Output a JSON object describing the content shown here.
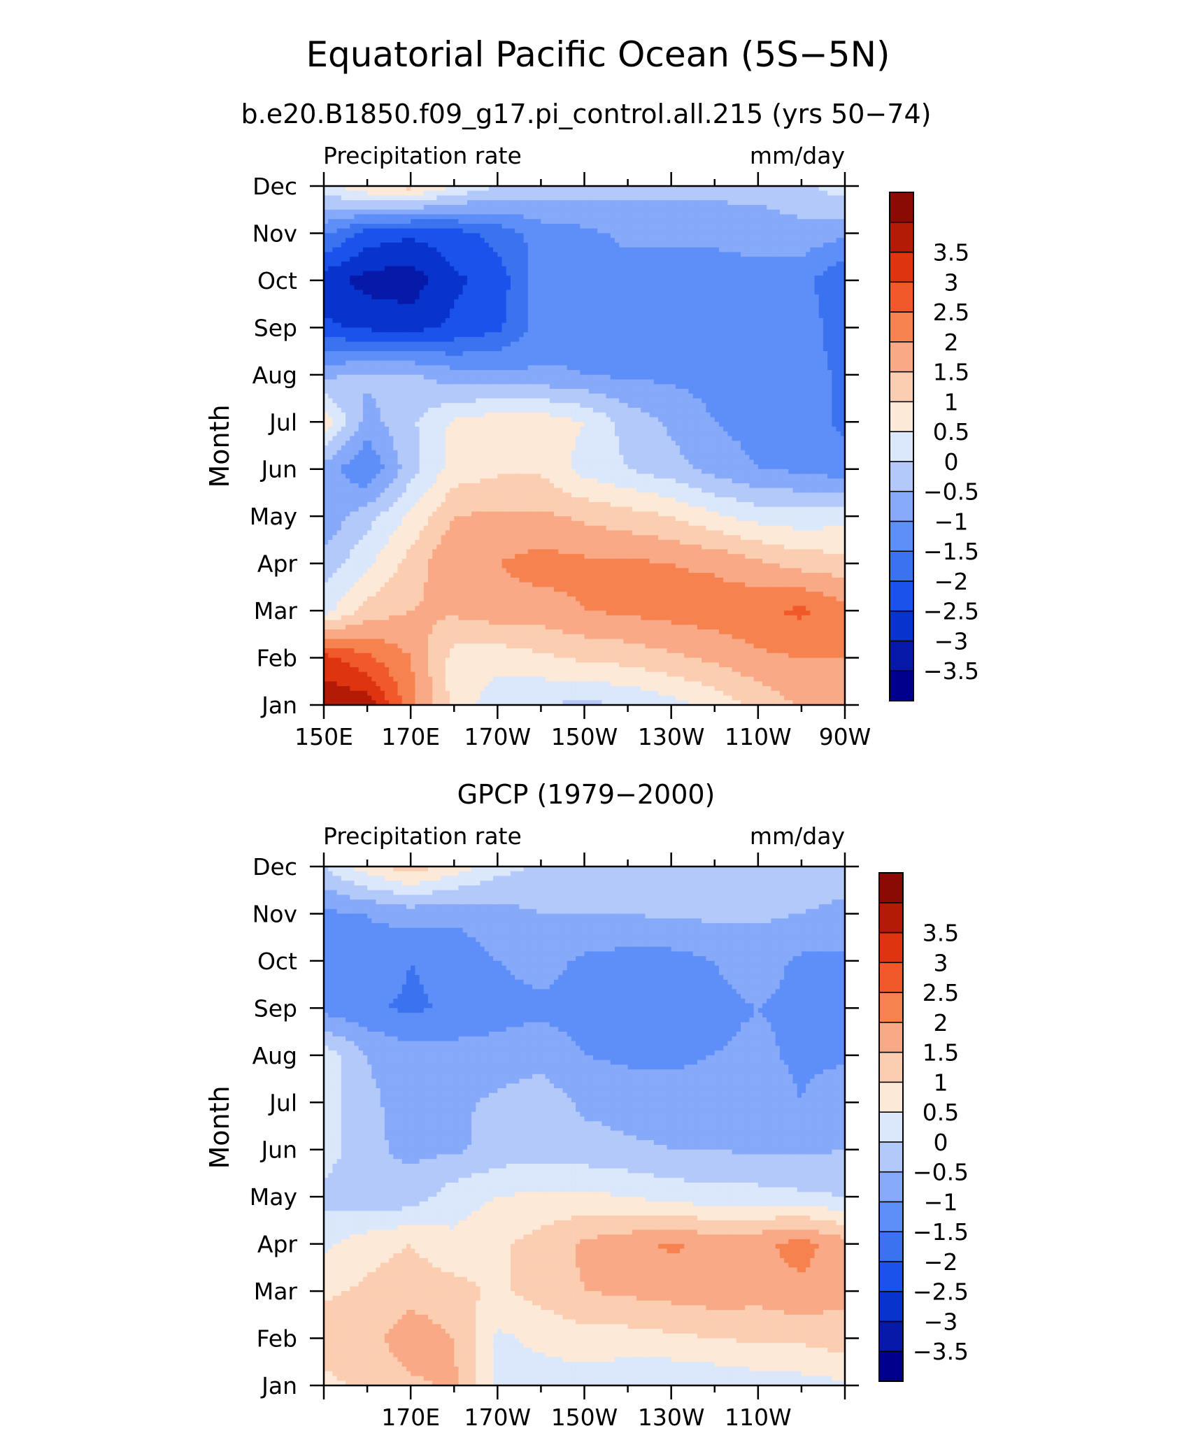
{
  "figure": {
    "title": "Equatorial Pacific Ocean (5S−5N)"
  },
  "colorbar": {
    "levels": [
      -4,
      -3.5,
      -3,
      -2.5,
      -2,
      -1.5,
      -1,
      -0.5,
      0,
      0.5,
      1,
      1.5,
      2,
      2.5,
      3,
      3.5,
      4
    ],
    "labels": [
      "−3.5",
      "−3",
      "−2.5",
      "−2",
      "−1.5",
      "−1",
      "−0.5",
      "0",
      "0.5",
      "1",
      "1.5",
      "2",
      "2.5",
      "3",
      "3.5"
    ],
    "colors": [
      "#00008c",
      "#0619a8",
      "#0833cc",
      "#1a53ec",
      "#3a72f0",
      "#5e8ef7",
      "#86a9f9",
      "#b3c9fa",
      "#dbe7fb",
      "#fde9d7",
      "#fbcdb1",
      "#f9a985",
      "#f6834f",
      "#f1592a",
      "#de340f",
      "#b31b06",
      "#8a0a04"
    ]
  },
  "chart_data": [
    {
      "type": "heatmap",
      "subtitle": "b.e20.B1850.f09_g17.pi_control.all.215 (yrs 50−74)",
      "left_label": "Precipitation rate",
      "right_label": "mm/day",
      "ylabel": "Month",
      "months": [
        "Jan",
        "Feb",
        "Mar",
        "Apr",
        "May",
        "Jun",
        "Jul",
        "Aug",
        "Sep",
        "Oct",
        "Nov",
        "Dec"
      ],
      "x_ticks": [
        "150E",
        "170E",
        "170W",
        "150W",
        "130W",
        "110W",
        "90W"
      ],
      "x": [
        150,
        160,
        170,
        180,
        190,
        200,
        210,
        220,
        230,
        240,
        250,
        260,
        270
      ],
      "y": [
        1,
        2,
        3,
        4,
        5,
        6,
        7,
        8,
        9,
        10,
        11,
        12
      ],
      "xlim": [
        150,
        270
      ],
      "ylim": [
        1,
        12
      ],
      "z": [
        [
          3.9,
          3.8,
          2.2,
          0.8,
          0.2,
          0.0,
          -0.1,
          0.0,
          0.3,
          0.7,
          1.1,
          1.6,
          1.9
        ],
        [
          3.2,
          2.6,
          2.0,
          0.8,
          0.7,
          0.9,
          1.1,
          1.2,
          1.4,
          1.6,
          1.9,
          2.0,
          2.0
        ],
        [
          0.3,
          1.2,
          1.5,
          1.6,
          1.8,
          1.8,
          2.0,
          2.1,
          2.2,
          2.3,
          2.4,
          2.6,
          2.2
        ],
        [
          -0.3,
          0.4,
          1.2,
          2.0,
          2.0,
          2.2,
          2.1,
          2.1,
          2.0,
          1.9,
          1.6,
          1.3,
          1.2
        ],
        [
          -0.9,
          -0.2,
          0.6,
          1.5,
          1.6,
          1.6,
          1.4,
          1.2,
          1.0,
          0.6,
          0.3,
          0.2,
          0.3
        ],
        [
          -0.7,
          -1.5,
          -0.2,
          0.7,
          0.9,
          0.9,
          0.3,
          0.0,
          -0.3,
          -0.7,
          -1.0,
          -1.1,
          -1.3
        ],
        [
          0.8,
          -0.7,
          -0.1,
          0.6,
          0.8,
          0.8,
          0.5,
          -0.2,
          -0.6,
          -1.0,
          -1.2,
          -1.3,
          -1.6
        ],
        [
          -0.6,
          -0.4,
          -0.4,
          -0.8,
          -0.9,
          -0.9,
          -1.0,
          -1.1,
          -1.1,
          -1.2,
          -1.2,
          -1.3,
          -1.6
        ],
        [
          -2.4,
          -2.6,
          -2.7,
          -2.4,
          -2.1,
          -1.3,
          -1.2,
          -1.2,
          -1.2,
          -1.2,
          -1.2,
          -1.2,
          -1.8
        ],
        [
          -2.8,
          -3.2,
          -3.3,
          -2.6,
          -2.3,
          -1.2,
          -1.2,
          -1.2,
          -1.2,
          -1.2,
          -1.2,
          -1.3,
          -2.0
        ],
        [
          -1.4,
          -2.2,
          -2.4,
          -2.2,
          -1.8,
          -1.3,
          -1.1,
          -0.9,
          -0.9,
          -0.9,
          -0.8,
          -0.7,
          -0.9
        ],
        [
          0.3,
          1.0,
          1.2,
          0.5,
          0.0,
          -0.1,
          -0.3,
          -0.3,
          -0.3,
          -0.3,
          -0.3,
          -0.1,
          0.3
        ]
      ]
    },
    {
      "type": "heatmap",
      "subtitle": "GPCP (1979−2000)",
      "left_label": "Precipitation rate",
      "right_label": "mm/day",
      "ylabel": "Month",
      "months": [
        "Jan",
        "Feb",
        "Mar",
        "Apr",
        "May",
        "Jun",
        "Jul",
        "Aug",
        "Sep",
        "Oct",
        "Nov",
        "Dec"
      ],
      "x_ticks": [
        "170E",
        "170W",
        "150W",
        "130W",
        "110W"
      ],
      "x": [
        150,
        160,
        170,
        180,
        190,
        200,
        210,
        220,
        230,
        240,
        250,
        260,
        270
      ],
      "y": [
        1,
        2,
        3,
        4,
        5,
        6,
        7,
        8,
        9,
        10,
        11,
        12
      ],
      "xlim": [
        150,
        270
      ],
      "ylim": [
        1,
        12
      ],
      "z": [
        [
          0.8,
          1.2,
          1.4,
          1.6,
          0.4,
          0.3,
          0.2,
          0.1,
          0.0,
          0.1,
          0.2,
          0.3,
          0.4
        ],
        [
          1.4,
          1.3,
          1.8,
          1.5,
          0.4,
          0.6,
          0.8,
          0.8,
          0.9,
          1.0,
          1.1,
          1.1,
          1.3
        ],
        [
          0.9,
          1.1,
          1.3,
          1.2,
          0.9,
          1.2,
          1.5,
          1.6,
          1.7,
          1.8,
          1.7,
          1.9,
          1.6
        ],
        [
          0.4,
          0.8,
          1.0,
          0.6,
          0.9,
          1.2,
          1.6,
          1.8,
          2.1,
          1.8,
          1.9,
          2.2,
          1.7
        ],
        [
          -0.2,
          -0.4,
          -0.3,
          0.3,
          0.5,
          0.6,
          0.6,
          0.5,
          0.3,
          0.2,
          0.2,
          0.1,
          0.0
        ],
        [
          0.3,
          -0.4,
          -0.6,
          -0.6,
          -0.3,
          -0.2,
          -0.3,
          -0.4,
          -0.5,
          -0.5,
          -0.6,
          -0.6,
          -0.5
        ],
        [
          0.3,
          -0.4,
          -0.7,
          -0.6,
          -0.4,
          -0.2,
          -0.6,
          -0.7,
          -0.8,
          -0.7,
          -0.7,
          -1.0,
          -0.6
        ],
        [
          0.3,
          -0.5,
          -0.8,
          -0.8,
          -0.8,
          -0.7,
          -1.0,
          -1.1,
          -1.1,
          -1.0,
          -0.9,
          -1.1,
          -1.1
        ],
        [
          -1.2,
          -1.4,
          -1.6,
          -1.4,
          -1.2,
          -1.1,
          -1.2,
          -1.3,
          -1.2,
          -1.1,
          -1.0,
          -1.1,
          -1.0
        ],
        [
          -1.0,
          -1.1,
          -1.5,
          -1.3,
          -1.0,
          -0.8,
          -1.1,
          -1.2,
          -1.2,
          -1.0,
          -0.8,
          -1.1,
          -1.1
        ],
        [
          -1.1,
          -1.0,
          -0.8,
          -0.9,
          -0.7,
          -0.5,
          -0.5,
          -0.5,
          -0.4,
          -0.4,
          -0.4,
          -0.5,
          -0.6
        ],
        [
          0.0,
          0.8,
          1.3,
          0.8,
          0.2,
          -0.1,
          -0.2,
          -0.3,
          -0.3,
          -0.3,
          -0.3,
          -0.3,
          -0.3
        ]
      ]
    }
  ]
}
